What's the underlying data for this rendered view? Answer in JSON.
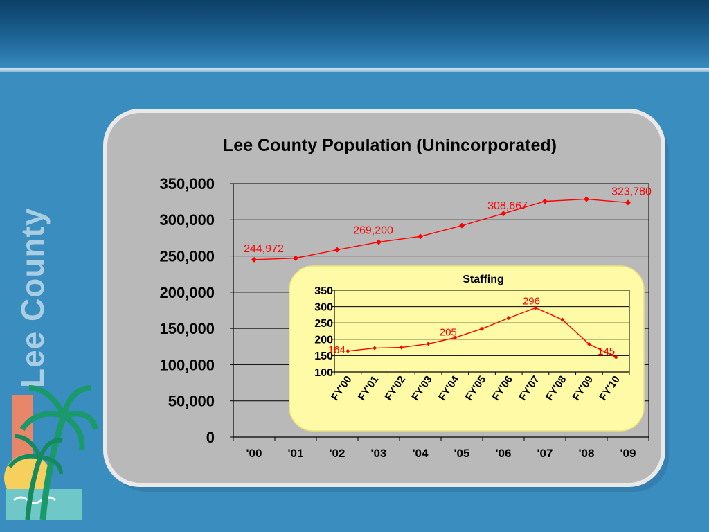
{
  "side_title": "Lee County",
  "chart_data": [
    {
      "type": "line",
      "title": "Lee County Population (Unincorporated)",
      "categories": [
        "'00",
        "'01",
        "'02",
        "'03",
        "'04",
        "'05",
        "'06",
        "'07",
        "'08",
        "'09"
      ],
      "values": [
        244972,
        247000,
        258500,
        269200,
        277000,
        292000,
        308667,
        325500,
        328500,
        323780
      ],
      "data_labels": [
        {
          "index": 0,
          "text": "244,972"
        },
        {
          "index": 3,
          "text": "269,200"
        },
        {
          "index": 6,
          "text": "308,667"
        },
        {
          "index": 9,
          "text": "323,780"
        }
      ],
      "ylim": [
        0,
        350000
      ],
      "y_ticks": [
        "0",
        "50,000",
        "100,000",
        "150,000",
        "200,000",
        "250,000",
        "300,000",
        "350,000"
      ],
      "grid": true,
      "color": "#ff0000"
    },
    {
      "type": "line",
      "title": "Staffing",
      "categories": [
        "FY'00",
        "FY'01",
        "FY'02",
        "FY'03",
        "FY'04",
        "FY'05",
        "FY'06",
        "FY'07",
        "FY'08",
        "FY'09",
        "FY'10"
      ],
      "values": [
        164,
        173,
        175,
        186,
        205,
        232,
        265,
        296,
        260,
        185,
        145
      ],
      "data_labels": [
        {
          "index": 0,
          "text": "164"
        },
        {
          "index": 4,
          "text": "205"
        },
        {
          "index": 7,
          "text": "296"
        },
        {
          "index": 10,
          "text": "145"
        }
      ],
      "ylim": [
        100,
        350
      ],
      "y_ticks": [
        "100",
        "150",
        "200",
        "250",
        "300",
        "350"
      ],
      "grid": true,
      "color": "#ff0000"
    }
  ]
}
